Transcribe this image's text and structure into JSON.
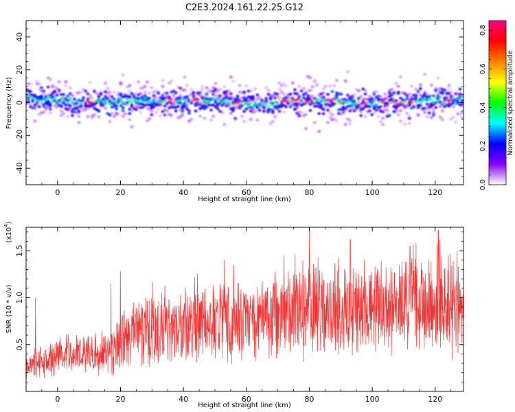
{
  "title": "C2E3.2024.161.22.25.G12",
  "chart_data": [
    {
      "type": "heatmap",
      "xlabel": "Height of straight line (km)",
      "ylabel": "Frequency (Hz)",
      "xlim": [
        -10,
        129
      ],
      "ylim": [
        -50,
        50
      ],
      "xticks": [
        0,
        20,
        40,
        60,
        80,
        100,
        120
      ],
      "yticks": [
        -40,
        -20,
        0,
        20,
        40
      ],
      "band": {
        "center_hz": [
          {
            "x": -10,
            "y": 3
          },
          {
            "x": 0,
            "y": 1
          },
          {
            "x": 10,
            "y": 0
          },
          {
            "x": 20,
            "y": 1
          },
          {
            "x": 30,
            "y": 1
          },
          {
            "x": 40,
            "y": 1
          },
          {
            "x": 50,
            "y": 1
          },
          {
            "x": 60,
            "y": 0
          },
          {
            "x": 63,
            "y": -2
          },
          {
            "x": 70,
            "y": 1
          },
          {
            "x": 80,
            "y": 1
          },
          {
            "x": 90,
            "y": 0
          },
          {
            "x": 100,
            "y": 0
          },
          {
            "x": 110,
            "y": 0
          },
          {
            "x": 120,
            "y": 1
          },
          {
            "x": 129,
            "y": 2
          }
        ],
        "core_halfwidth_hz": 4,
        "halo_halfwidth_hz": 12,
        "peak_amplitude_locations_km": [
          10,
          36,
          44,
          57,
          72,
          76,
          80,
          87,
          97,
          104,
          108,
          112,
          124
        ]
      },
      "colorbar": {
        "label": "Normalized spectral amplitude",
        "range": [
          0,
          0.85
        ],
        "ticks": [
          "0.0",
          "0.2",
          "0.4",
          "0.6",
          "0.8"
        ],
        "tick_values": [
          0.0,
          0.2,
          0.4,
          0.6,
          0.8
        ],
        "colors": [
          "#ffffff",
          "#8800ff",
          "#0000ff",
          "#00ffff",
          "#00ff00",
          "#ffff00",
          "#ff8000",
          "#ff0000",
          "#ff0080"
        ]
      }
    },
    {
      "type": "line",
      "xlabel": "Height of straight line (km)",
      "ylabel": "SNR (10 * v/v)",
      "multiplier_label": "(x10",
      "multiplier_exponent": "4",
      "multiplier_close": ")",
      "xlim": [
        -10,
        129
      ],
      "ylim": [
        0,
        1.75
      ],
      "xticks": [
        0,
        20,
        40,
        60,
        80,
        100,
        120
      ],
      "yticks": [
        "0.5",
        "1.0",
        "1.5"
      ],
      "ytick_values": [
        0.5,
        1.0,
        1.5
      ],
      "color": "#ee3333",
      "trend": [
        {
          "x": -10,
          "y": 0.25
        },
        {
          "x": 0,
          "y": 0.37
        },
        {
          "x": 10,
          "y": 0.38
        },
        {
          "x": 17,
          "y": 0.42
        },
        {
          "x": 20,
          "y": 0.55
        },
        {
          "x": 30,
          "y": 0.65
        },
        {
          "x": 40,
          "y": 0.7
        },
        {
          "x": 50,
          "y": 0.75
        },
        {
          "x": 60,
          "y": 0.77
        },
        {
          "x": 70,
          "y": 0.8
        },
        {
          "x": 80,
          "y": 0.85
        },
        {
          "x": 90,
          "y": 0.84
        },
        {
          "x": 100,
          "y": 0.86
        },
        {
          "x": 110,
          "y": 0.88
        },
        {
          "x": 120,
          "y": 0.9
        },
        {
          "x": 129,
          "y": 0.92
        }
      ],
      "spikes": [
        {
          "x": -7,
          "y": 1.0
        },
        {
          "x": 17,
          "y": 1.15
        },
        {
          "x": 20,
          "y": 1.28
        },
        {
          "x": 53,
          "y": 1.4
        },
        {
          "x": 72,
          "y": 1.45
        },
        {
          "x": 80,
          "y": 1.75
        },
        {
          "x": 93,
          "y": 1.62
        },
        {
          "x": 112,
          "y": 1.55
        },
        {
          "x": 121,
          "y": 1.72
        },
        {
          "x": 127,
          "y": 1.5
        }
      ]
    }
  ]
}
